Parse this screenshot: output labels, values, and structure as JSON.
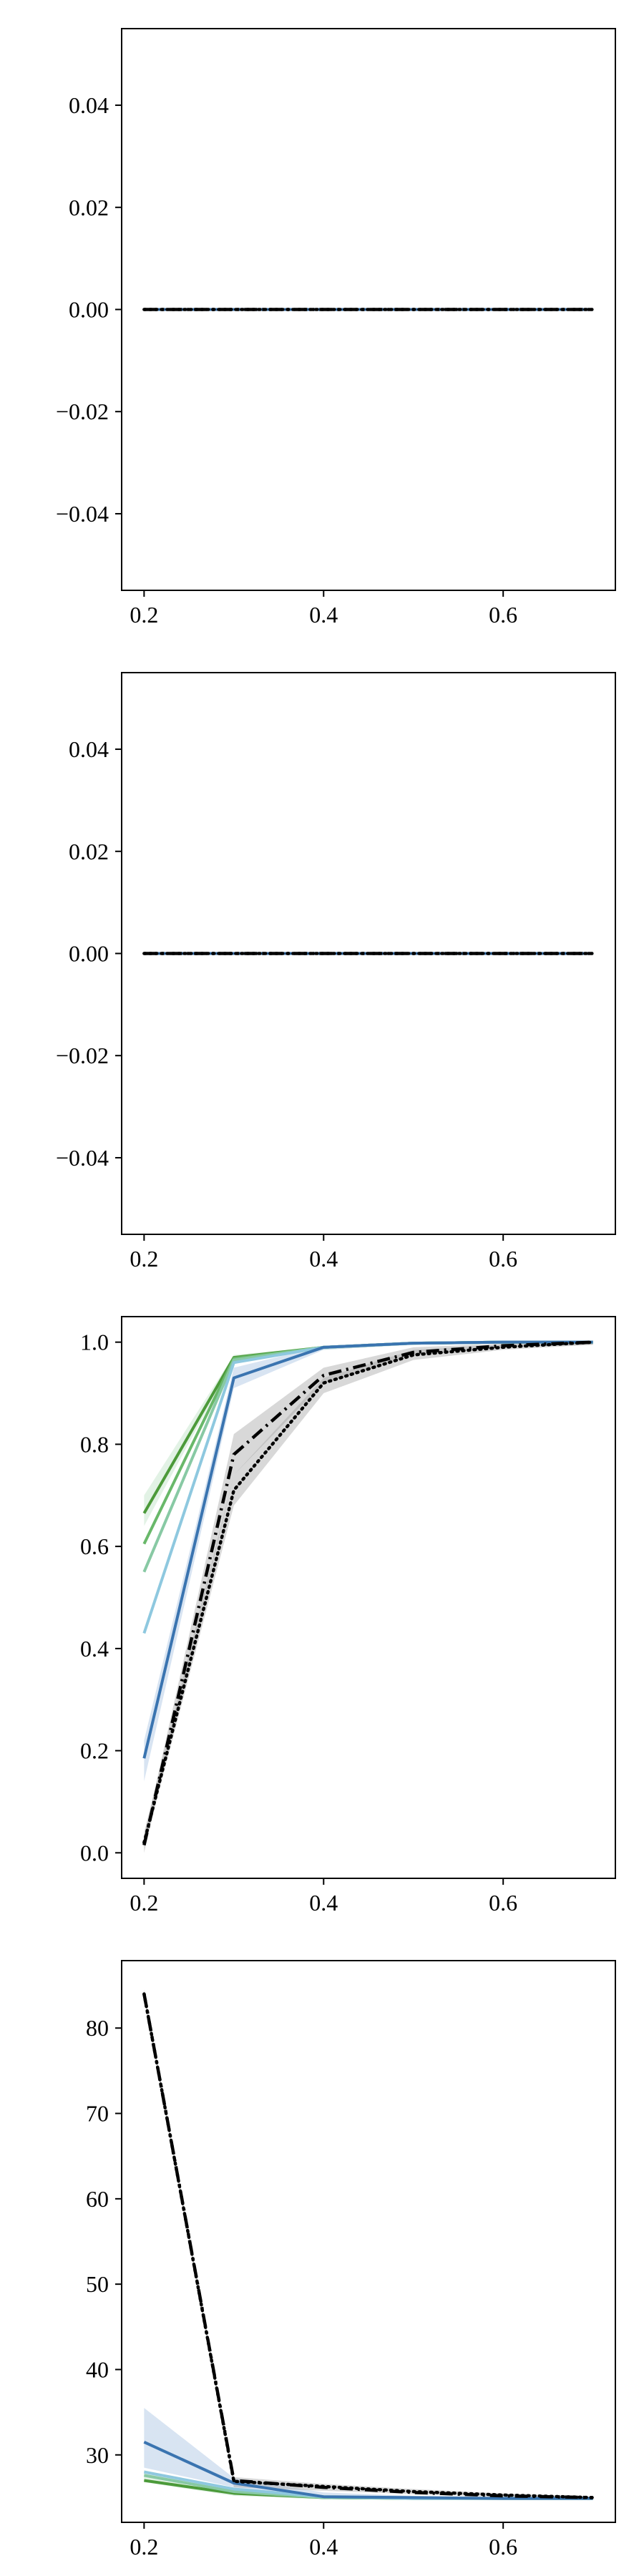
{
  "colors": {
    "dark_green": "#4c9a3a",
    "mid_green": "#69b86a",
    "light_green": "#88c9a4",
    "light_blue": "#8ec8df",
    "blue": "#3a74b0",
    "black": "#000000",
    "band_gray": "#a8a8a8",
    "band_blue": "#a9c4e2",
    "band_green": "#bfe3c6"
  },
  "chart_data": [
    {
      "type": "line",
      "x": [
        0.2,
        0.3,
        0.4,
        0.5,
        0.6,
        0.7
      ],
      "xlim": [
        0.175,
        0.725
      ],
      "ylim": [
        -0.055,
        0.055
      ],
      "xticks": [
        0.2,
        0.4,
        0.6
      ],
      "xtick_labels": [
        "0.2",
        "0.4",
        "0.6"
      ],
      "yticks": [
        -0.04,
        -0.02,
        0.0,
        0.02,
        0.04
      ],
      "ytick_labels": [
        "−0.04",
        "−0.02",
        "0.00",
        "0.02",
        "0.04"
      ],
      "grid": false,
      "series": [
        {
          "color_key": "light_blue",
          "style": "solid",
          "values": [
            0,
            0,
            0,
            0,
            0,
            0
          ]
        },
        {
          "color_key": "blue",
          "style": "solid",
          "values": [
            0,
            0,
            0,
            0,
            0,
            0
          ]
        },
        {
          "color_key": "black",
          "style": "dotted",
          "values": [
            0,
            0,
            0,
            0,
            0,
            0
          ]
        },
        {
          "color_key": "black",
          "style": "dashdot",
          "values": [
            0,
            0,
            0,
            0,
            0,
            0
          ]
        }
      ]
    },
    {
      "type": "line",
      "x": [
        0.2,
        0.3,
        0.4,
        0.5,
        0.6,
        0.7
      ],
      "xlim": [
        0.175,
        0.725
      ],
      "ylim": [
        -0.055,
        0.055
      ],
      "xticks": [
        0.2,
        0.4,
        0.6
      ],
      "xtick_labels": [
        "0.2",
        "0.4",
        "0.6"
      ],
      "yticks": [
        -0.04,
        -0.02,
        0.0,
        0.02,
        0.04
      ],
      "ytick_labels": [
        "−0.04",
        "−0.02",
        "0.00",
        "0.02",
        "0.04"
      ],
      "grid": false,
      "series": [
        {
          "color_key": "light_blue",
          "style": "solid",
          "values": [
            0,
            0,
            0,
            0,
            0,
            0
          ]
        },
        {
          "color_key": "blue",
          "style": "solid",
          "values": [
            0,
            0,
            0,
            0,
            0,
            0
          ]
        },
        {
          "color_key": "black",
          "style": "dotted",
          "values": [
            0,
            0,
            0,
            0,
            0,
            0
          ]
        },
        {
          "color_key": "black",
          "style": "dashdot",
          "values": [
            0,
            0,
            0,
            0,
            0,
            0
          ]
        }
      ]
    },
    {
      "type": "line",
      "x": [
        0.2,
        0.3,
        0.4,
        0.5,
        0.6,
        0.7
      ],
      "xlim": [
        0.175,
        0.725
      ],
      "ylim": [
        -0.05,
        1.05
      ],
      "xticks": [
        0.2,
        0.4,
        0.6
      ],
      "xtick_labels": [
        "0.2",
        "0.4",
        "0.6"
      ],
      "yticks": [
        0.0,
        0.2,
        0.4,
        0.6,
        0.8,
        1.0
      ],
      "ytick_labels": [
        "0.0",
        "0.2",
        "0.4",
        "0.6",
        "0.8",
        "1.0"
      ],
      "grid": false,
      "bands": [
        {
          "color_key": "band_green",
          "lower": [
            0.64,
            0.965,
            0.985,
            0.995,
            0.998,
            0.999
          ],
          "upper": [
            0.7,
            0.975,
            0.992,
            0.999,
            1.0,
            1.0
          ]
        },
        {
          "color_key": "band_blue",
          "lower": [
            0.14,
            0.91,
            0.985,
            0.995,
            0.998,
            0.999
          ],
          "upper": [
            0.22,
            0.95,
            0.993,
            0.999,
            1.0,
            1.0
          ]
        },
        {
          "color_key": "band_gray",
          "lower": [
            0.0,
            0.74,
            0.92,
            0.975,
            0.99,
            0.995
          ],
          "upper": [
            0.03,
            0.82,
            0.95,
            0.99,
            0.997,
            1.0
          ]
        },
        {
          "color_key": "band_gray",
          "lower": [
            0.01,
            0.68,
            0.9,
            0.965,
            0.985,
            0.995
          ],
          "upper": [
            0.04,
            0.74,
            0.93,
            0.985,
            0.995,
            1.0
          ]
        }
      ],
      "series": [
        {
          "color_key": "dark_green",
          "style": "solid",
          "values": [
            0.665,
            0.97,
            0.99,
            0.998,
            1.0,
            1.0
          ]
        },
        {
          "color_key": "mid_green",
          "style": "solid",
          "values": [
            0.605,
            0.968,
            0.99,
            0.998,
            1.0,
            1.0
          ]
        },
        {
          "color_key": "light_green",
          "style": "solid",
          "values": [
            0.55,
            0.965,
            0.99,
            0.998,
            1.0,
            1.0
          ]
        },
        {
          "color_key": "light_blue",
          "style": "solid",
          "values": [
            0.43,
            0.96,
            0.99,
            0.998,
            1.0,
            1.0
          ]
        },
        {
          "color_key": "blue",
          "style": "solid",
          "values": [
            0.185,
            0.93,
            0.99,
            0.998,
            1.0,
            1.0
          ]
        },
        {
          "color_key": "black",
          "style": "dotted",
          "values": [
            0.02,
            0.71,
            0.92,
            0.975,
            0.99,
            1.0
          ]
        },
        {
          "color_key": "black",
          "style": "dashdot",
          "values": [
            0.015,
            0.78,
            0.935,
            0.98,
            0.993,
            1.0
          ]
        }
      ]
    },
    {
      "type": "line",
      "x": [
        0.2,
        0.3,
        0.4,
        0.5,
        0.6,
        0.7
      ],
      "xlim": [
        0.175,
        0.725
      ],
      "ylim": [
        22.1,
        87.9
      ],
      "xticks": [
        0.2,
        0.4,
        0.6
      ],
      "xtick_labels": [
        "0.2",
        "0.4",
        "0.6"
      ],
      "yticks": [
        30,
        40,
        50,
        60,
        70,
        80
      ],
      "ytick_labels": [
        "30",
        "40",
        "50",
        "60",
        "70",
        "80"
      ],
      "grid": false,
      "bands": [
        {
          "color_key": "band_blue",
          "lower": [
            28.5,
            26.2,
            25.0,
            24.8,
            24.8,
            24.9
          ],
          "upper": [
            35.5,
            27.3,
            25.6,
            25.2,
            25.1,
            25.0
          ]
        },
        {
          "color_key": "band_green",
          "lower": [
            26.8,
            25.2,
            24.8,
            24.8,
            24.8,
            24.9
          ],
          "upper": [
            28.2,
            26.0,
            25.3,
            25.1,
            25.0,
            25.0
          ]
        },
        {
          "color_key": "band_gray",
          "lower": [
            83.5,
            26.2,
            25.8,
            25.4,
            25.1,
            24.9
          ],
          "upper": [
            84.5,
            27.4,
            26.6,
            26.0,
            25.5,
            25.1
          ]
        }
      ],
      "series": [
        {
          "color_key": "dark_green",
          "style": "solid",
          "values": [
            27.0,
            25.5,
            25.0,
            24.9,
            24.9,
            24.9
          ]
        },
        {
          "color_key": "light_green",
          "style": "solid",
          "values": [
            27.6,
            25.7,
            25.0,
            24.9,
            24.9,
            24.9
          ]
        },
        {
          "color_key": "light_blue",
          "style": "solid",
          "values": [
            28.0,
            26.0,
            25.1,
            24.9,
            24.9,
            24.9
          ]
        },
        {
          "color_key": "blue",
          "style": "solid",
          "values": [
            31.5,
            26.7,
            25.1,
            25.0,
            24.9,
            24.9
          ]
        },
        {
          "color_key": "black",
          "style": "dotted",
          "values": [
            84.0,
            26.9,
            26.3,
            25.7,
            25.3,
            25.0
          ]
        },
        {
          "color_key": "black",
          "style": "dashdot",
          "values": [
            84.0,
            27.0,
            26.2,
            25.6,
            25.2,
            25.0
          ]
        }
      ]
    }
  ]
}
